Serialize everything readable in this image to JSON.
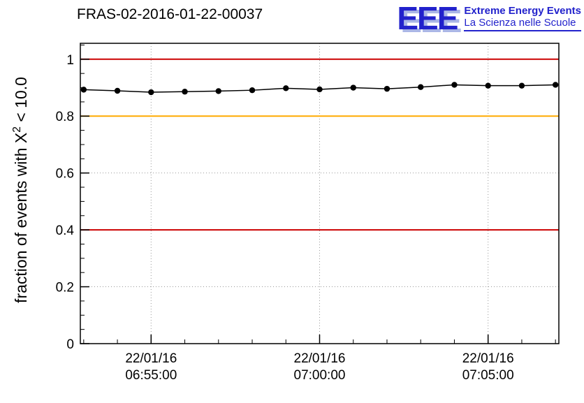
{
  "header": {
    "logo": {
      "eee": "EEE",
      "line1": "Extreme Energy Events",
      "line2": "La Scienza nelle Scuole",
      "color": "#2222cc"
    }
  },
  "chart_data": {
    "type": "line",
    "title": "FRAS-02-2016-01-22-00037",
    "ylabel_parts": {
      "prefix": "fraction of events with X",
      "sup": "2",
      "suffix": " < 10.0"
    },
    "xlabel": "",
    "ylim": [
      0,
      1.056
    ],
    "yticks": [
      0,
      0.2,
      0.4,
      0.6,
      0.8,
      1
    ],
    "ytick_labels": [
      "0",
      "0.2",
      "0.4",
      "0.6",
      "0.8",
      "1"
    ],
    "y_minor_step": 0.05,
    "x_domain_minutes": [
      412.9,
      427.1
    ],
    "xticks_minutes": [
      415,
      420,
      425
    ],
    "xtick_labels": [
      [
        "22/01/16",
        "06:55:00"
      ],
      [
        "22/01/16",
        "07:00:00"
      ],
      [
        "22/01/16",
        "07:05:00"
      ]
    ],
    "grid": true,
    "legend": "none",
    "reference_lines": [
      {
        "y": 1.0,
        "color": "#cc0000"
      },
      {
        "y": 0.8,
        "color": "#ffaa00"
      },
      {
        "y": 0.4,
        "color": "#cc0000"
      }
    ],
    "series": [
      {
        "name": "fraction of events with chi2 < 10",
        "color": "#000000",
        "marker": "circle",
        "x_minutes": [
          413,
          414,
          415,
          416,
          417,
          418,
          419,
          420,
          421,
          422,
          423,
          424,
          425,
          426,
          427
        ],
        "x_labels": [
          "06:53:00",
          "06:54:00",
          "06:55:00",
          "06:56:00",
          "06:57:00",
          "06:58:00",
          "06:59:00",
          "07:00:00",
          "07:01:00",
          "07:02:00",
          "07:03:00",
          "07:04:00",
          "07:05:00",
          "07:06:00",
          "07:07:00"
        ],
        "values": [
          0.893,
          0.889,
          0.884,
          0.886,
          0.888,
          0.891,
          0.898,
          0.894,
          0.9,
          0.896,
          0.902,
          0.91,
          0.907,
          0.907,
          0.91
        ]
      }
    ]
  }
}
